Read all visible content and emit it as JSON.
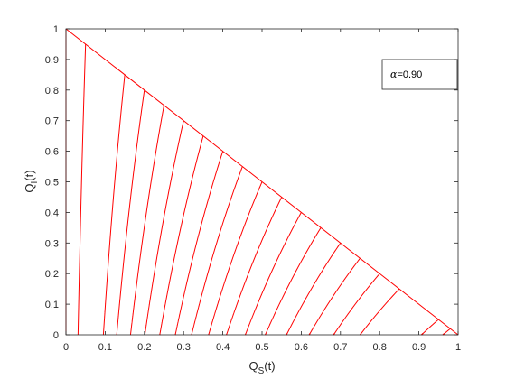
{
  "chart_data": {
    "type": "line",
    "xlabel": {
      "base": "Q",
      "sub": "S",
      "suffix": "(t)"
    },
    "ylabel": {
      "base": "Q",
      "sub": "I",
      "suffix": "(t)"
    },
    "xlim": [
      0,
      1
    ],
    "ylim": [
      0,
      1
    ],
    "xticks": [
      "0",
      "0.1",
      "0.2",
      "0.3",
      "0.4",
      "0.5",
      "0.6",
      "0.7",
      "0.8",
      "0.9",
      "1"
    ],
    "yticks": [
      "0",
      "0.1",
      "0.2",
      "0.3",
      "0.4",
      "0.5",
      "0.6",
      "0.7",
      "0.8",
      "0.9",
      "1"
    ],
    "grid": false,
    "legend": {
      "position": "top-right",
      "symbol": "α",
      "value_text": "=0.90"
    },
    "series_color": "#ff0000",
    "boundary_line": {
      "x": [
        0,
        1
      ],
      "y": [
        1,
        0
      ]
    },
    "trajectory_starts_x": [
      0,
      0.05,
      0.15,
      0.2,
      0.25,
      0.3,
      0.35,
      0.4,
      0.45,
      0.5,
      0.55,
      0.6,
      0.65,
      0.7,
      0.75,
      0.8,
      0.85,
      0.95,
      0.98
    ]
  }
}
